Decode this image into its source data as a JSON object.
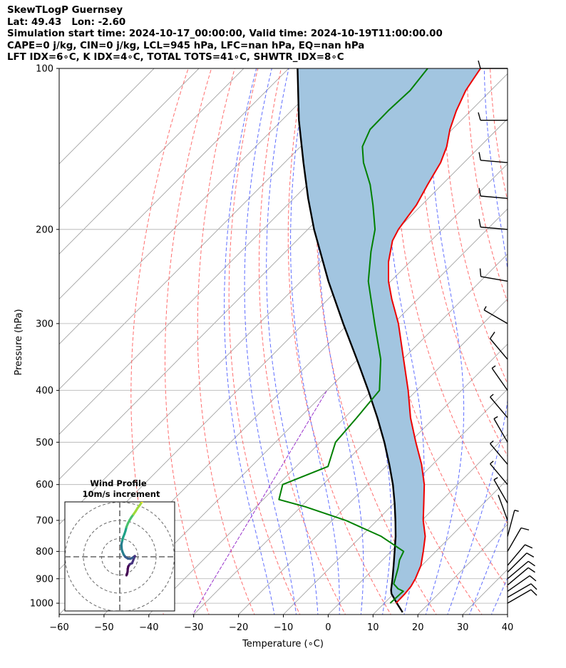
{
  "header": {
    "line1": "SkewTLogP Guernsey",
    "line2": "Lat: 49.43   Lon: -2.60",
    "line3": "Simulation start time: 2024-10-17_00:00:00, Valid time: 2024-10-19T11:00:00.00",
    "line4": "CAPE=0 j/kg, CIN=0 j/kg, LCL=945 hPa, LFC=nan hPa, EQ=nan hPa",
    "line5": "LFT IDX=6∘C, K IDX=4∘C, TOTAL TOTS=41∘C, SHWTR_IDX=8∘C"
  },
  "colors": {
    "temperature": "#ee0000",
    "dewpoint": "#008000",
    "parcel": "#000000",
    "shade": "#a2c5e0",
    "dry_adiabat": "#ff5555",
    "moist_adiabat": "#4455ff",
    "mixing_ratio": "#9933cc",
    "isotherm": "#999999",
    "grid": "#b0b0b0"
  },
  "chart_data": {
    "type": "skewt",
    "xlabel": "Temperature (∘C)",
    "ylabel": "Pressure (hPa)",
    "xlim": [
      -60,
      40
    ],
    "ylim": [
      1050,
      100
    ],
    "x_ticks": [
      "−60",
      "−50",
      "−40",
      "−30",
      "−20",
      "−10",
      "0",
      "10",
      "20",
      "30",
      "40"
    ],
    "x_tick_values": [
      -60,
      -50,
      -40,
      -30,
      -20,
      -10,
      0,
      10,
      20,
      30,
      40
    ],
    "y_ticks": [
      "100",
      "200",
      "300",
      "400",
      "500",
      "600",
      "700",
      "800",
      "900",
      "1000"
    ],
    "y_tick_values": [
      100,
      200,
      300,
      400,
      500,
      600,
      700,
      800,
      900,
      1000
    ],
    "temperature": [
      [
        1000,
        12.6
      ],
      [
        960,
        12.5
      ],
      [
        930,
        12.2
      ],
      [
        900,
        11.5
      ],
      [
        850,
        9.8
      ],
      [
        800,
        7.2
      ],
      [
        750,
        4.3
      ],
      [
        700,
        0.3
      ],
      [
        650,
        -3.4
      ],
      [
        600,
        -7.4
      ],
      [
        550,
        -12.5
      ],
      [
        500,
        -18.7
      ],
      [
        450,
        -25.3
      ],
      [
        400,
        -31.9
      ],
      [
        350,
        -39.8
      ],
      [
        300,
        -48.9
      ],
      [
        270,
        -55.8
      ],
      [
        250,
        -60.5
      ],
      [
        230,
        -64.8
      ],
      [
        210,
        -68.6
      ],
      [
        200,
        -69.8
      ],
      [
        190,
        -70.5
      ],
      [
        180,
        -71.2
      ],
      [
        165,
        -73.2
      ],
      [
        150,
        -75.2
      ],
      [
        140,
        -77.4
      ],
      [
        130,
        -80.5
      ],
      [
        120,
        -83.2
      ],
      [
        110,
        -85.6
      ],
      [
        105,
        -86.4
      ],
      [
        100,
        -87.2
      ]
    ],
    "dewpoint": [
      [
        1000,
        11.3
      ],
      [
        960,
        11.5
      ],
      [
        950,
        11.6
      ],
      [
        940,
        9.9
      ],
      [
        920,
        7.8
      ],
      [
        900,
        7.0
      ],
      [
        860,
        5.3
      ],
      [
        830,
        3.8
      ],
      [
        800,
        2.8
      ],
      [
        750,
        -5.5
      ],
      [
        700,
        -17.0
      ],
      [
        660,
        -29.1
      ],
      [
        640,
        -36.5
      ],
      [
        600,
        -39.0
      ],
      [
        555,
        -32.9
      ],
      [
        500,
        -36.6
      ],
      [
        450,
        -37.3
      ],
      [
        400,
        -38.3
      ],
      [
        350,
        -44.9
      ],
      [
        300,
        -54.2
      ],
      [
        250,
        -65.0
      ],
      [
        220,
        -71.0
      ],
      [
        200,
        -75.0
      ],
      [
        180,
        -80.9
      ],
      [
        165,
        -86.0
      ],
      [
        150,
        -92.4
      ],
      [
        140,
        -96.2
      ],
      [
        130,
        -98.3
      ],
      [
        120,
        -98.4
      ],
      [
        110,
        -98.0
      ],
      [
        100,
        -99.0
      ]
    ],
    "parcel": [
      [
        1040,
        16.1
      ],
      [
        1000,
        12.8
      ],
      [
        960,
        9.5
      ],
      [
        945,
        8.6
      ],
      [
        900,
        6.4
      ],
      [
        850,
        3.7
      ],
      [
        800,
        0.8
      ],
      [
        750,
        -2.3
      ],
      [
        700,
        -5.9
      ],
      [
        650,
        -9.9
      ],
      [
        600,
        -14.4
      ],
      [
        550,
        -19.7
      ],
      [
        500,
        -25.7
      ],
      [
        450,
        -32.7
      ],
      [
        400,
        -40.8
      ],
      [
        350,
        -50.2
      ],
      [
        300,
        -61.2
      ],
      [
        250,
        -73.9
      ],
      [
        200,
        -88.6
      ],
      [
        175,
        -96.8
      ],
      [
        150,
        -105.8
      ],
      [
        125,
        -116.2
      ],
      [
        100,
        -128.0
      ]
    ],
    "dry_adiabats_theta_c": [
      -40,
      -30,
      -20,
      -10,
      0,
      10,
      20,
      30,
      40,
      50,
      60,
      70,
      80,
      90,
      100
    ],
    "moist_adiabats_start_c": [
      -15,
      -10,
      -5,
      0,
      5,
      10,
      15,
      20,
      25,
      30,
      35
    ],
    "mixing_ratio_lines_c": [
      -30
    ],
    "wind_barbs": [
      {
        "p": 1000,
        "dir": 60,
        "speed": 12
      },
      {
        "p": 975,
        "dir": 60,
        "speed": 14
      },
      {
        "p": 950,
        "dir": 55,
        "speed": 14
      },
      {
        "p": 925,
        "dir": 50,
        "speed": 14
      },
      {
        "p": 900,
        "dir": 50,
        "speed": 12
      },
      {
        "p": 875,
        "dir": 45,
        "speed": 10
      },
      {
        "p": 850,
        "dir": 40,
        "speed": 10
      },
      {
        "p": 800,
        "dir": 30,
        "speed": 10
      },
      {
        "p": 750,
        "dir": 15,
        "speed": 6
      },
      {
        "p": 700,
        "dir": 340,
        "speed": 4
      },
      {
        "p": 650,
        "dir": 330,
        "speed": 5
      },
      {
        "p": 600,
        "dir": 320,
        "speed": 6
      },
      {
        "p": 550,
        "dir": 320,
        "speed": 8
      },
      {
        "p": 500,
        "dir": 330,
        "speed": 7
      },
      {
        "p": 450,
        "dir": 320,
        "speed": 7
      },
      {
        "p": 400,
        "dir": 325,
        "speed": 8
      },
      {
        "p": 350,
        "dir": 320,
        "speed": 10
      },
      {
        "p": 300,
        "dir": 300,
        "speed": 8
      },
      {
        "p": 250,
        "dir": 280,
        "speed": 10
      },
      {
        "p": 200,
        "dir": 275,
        "speed": 10
      },
      {
        "p": 175,
        "dir": 275,
        "speed": 10
      },
      {
        "p": 150,
        "dir": 275,
        "speed": 10
      },
      {
        "p": 125,
        "dir": 270,
        "speed": 11
      },
      {
        "p": 100,
        "dir": 270,
        "speed": 10
      }
    ],
    "hodograph": {
      "title": "Wind Profile",
      "subtitle": "10m/s increment",
      "ring_speeds_ms": [
        10,
        20,
        30
      ],
      "u": [
        3.7,
        4.0,
        4.3,
        4.4,
        4.7,
        5.5,
        6.8,
        7.9,
        8.3,
        7.2,
        5.8,
        4.5,
        3.1,
        2.2,
        1.5,
        1.1,
        0.9,
        1.4,
        1.9,
        2.6,
        3.1,
        3.7,
        4.5,
        5.5,
        6.5,
        7.6,
        8.7,
        9.8,
        11.0,
        12.2,
        13.3,
        14.5,
        15.8,
        16.9
      ],
      "v": [
        -10.2,
        -9.5,
        -8.3,
        -6.6,
        -5.3,
        -4.1,
        -3.5,
        -0.6,
        0.4,
        -0.4,
        -1.1,
        -1.0,
        -0.1,
        1.1,
        2.8,
        4.1,
        6.7,
        9.1,
        10.8,
        12.6,
        14.1,
        16.4,
        18.4,
        20.3,
        21.9,
        23.4,
        25.0,
        26.8,
        28.4,
        30.2,
        32.0,
        33.9,
        35.7,
        37.6
      ]
    }
  }
}
